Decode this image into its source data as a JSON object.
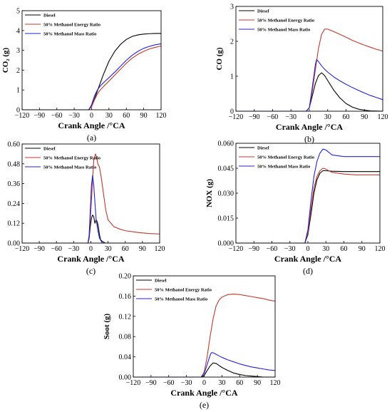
{
  "colors": {
    "diesel": "#000000",
    "energy": "#c0392b",
    "mass": "#2323d6"
  },
  "chart_data": [
    {
      "type": "line",
      "panel_label": "(a)",
      "xlabel": "Crank Angle /°CA",
      "ylabel": "CO₂ (g)",
      "xlim": [
        -120,
        120
      ],
      "ylim": [
        0,
        5
      ],
      "xticks": [
        -120,
        -90,
        -60,
        -30,
        0,
        30,
        60,
        90,
        120
      ],
      "yticks": [
        0,
        1,
        2,
        3,
        4,
        5
      ],
      "yticklabels": [
        "0",
        "1",
        "2",
        "3",
        "4",
        "5"
      ],
      "legend": "top-left",
      "series": [
        {
          "name": "Diesel",
          "color": "#000000",
          "x": [
            -120,
            -5,
            0,
            5,
            10,
            15,
            20,
            25,
            30,
            40,
            50,
            60,
            70,
            80,
            90,
            100,
            110,
            120
          ],
          "y": [
            0,
            0,
            0.22,
            0.55,
            0.95,
            1.35,
            1.75,
            2.1,
            2.45,
            2.95,
            3.3,
            3.55,
            3.7,
            3.78,
            3.82,
            3.84,
            3.85,
            3.85
          ]
        },
        {
          "name": "50% Methanol Energy Ratio",
          "color": "#c0392b",
          "x": [
            -120,
            -5,
            0,
            5,
            10,
            15,
            20,
            30,
            40,
            50,
            60,
            70,
            80,
            90,
            100,
            110,
            120
          ],
          "y": [
            0,
            0,
            0.15,
            0.5,
            0.8,
            1.0,
            1.15,
            1.45,
            1.75,
            2.05,
            2.35,
            2.6,
            2.8,
            2.95,
            3.07,
            3.15,
            3.22
          ]
        },
        {
          "name": "50% Methanol Mass Ratio",
          "color": "#2323d6",
          "x": [
            -120,
            -5,
            0,
            5,
            10,
            15,
            20,
            30,
            40,
            50,
            60,
            70,
            80,
            90,
            100,
            110,
            120
          ],
          "y": [
            0,
            0,
            0.25,
            0.7,
            1.0,
            1.2,
            1.35,
            1.62,
            1.9,
            2.2,
            2.5,
            2.75,
            2.95,
            3.1,
            3.2,
            3.28,
            3.33
          ]
        }
      ]
    },
    {
      "type": "line",
      "panel_label": "(b)",
      "xlabel": "Crank Angle /°CA",
      "ylabel": "CO  (g)",
      "xlim": [
        -120,
        120
      ],
      "ylim": [
        0,
        3
      ],
      "xticks": [
        -120,
        -90,
        -60,
        -30,
        0,
        30,
        60,
        90,
        120
      ],
      "yticks": [
        0,
        1,
        2,
        3
      ],
      "yticklabels": [
        "0",
        "1",
        "2",
        "3"
      ],
      "legend": "top-left",
      "series": [
        {
          "name": "Diesel",
          "color": "#000000",
          "x": [
            -120,
            -5,
            0,
            5,
            10,
            15,
            20,
            25,
            30,
            40,
            50,
            60,
            70,
            80,
            90,
            100,
            120
          ],
          "y": [
            0,
            0,
            0.1,
            0.45,
            0.8,
            1.02,
            1.1,
            1.02,
            0.88,
            0.6,
            0.38,
            0.22,
            0.12,
            0.06,
            0.03,
            0.01,
            0
          ]
        },
        {
          "name": "50% Methanol Energy Ratio",
          "color": "#c0392b",
          "x": [
            -120,
            -5,
            0,
            5,
            10,
            15,
            20,
            25,
            30,
            40,
            50,
            60,
            70,
            80,
            90,
            100,
            110,
            120
          ],
          "y": [
            0,
            0,
            0.1,
            0.6,
            1.2,
            1.8,
            2.2,
            2.35,
            2.35,
            2.28,
            2.2,
            2.12,
            2.03,
            1.96,
            1.89,
            1.83,
            1.77,
            1.72
          ]
        },
        {
          "name": "50% Methanol Mass Ratio",
          "color": "#2323d6",
          "x": [
            -120,
            -5,
            0,
            5,
            10,
            12,
            15,
            20,
            25,
            30,
            40,
            50,
            60,
            70,
            80,
            90,
            100,
            110,
            120
          ],
          "y": [
            0,
            0,
            0.1,
            0.7,
            1.35,
            1.48,
            1.42,
            1.3,
            1.2,
            1.12,
            0.98,
            0.87,
            0.77,
            0.68,
            0.6,
            0.52,
            0.45,
            0.39,
            0.33
          ]
        }
      ]
    },
    {
      "type": "line",
      "panel_label": "(c)",
      "xlabel": "Crank Angle /°CA",
      "ylabel": "HC (g)",
      "xlim": [
        -120,
        120
      ],
      "ylim": [
        0,
        0.6
      ],
      "xticks": [
        -120,
        -90,
        -60,
        -30,
        0,
        30,
        60,
        90,
        120
      ],
      "yticks": [
        0,
        0.12,
        0.24,
        0.36,
        0.48,
        0.6
      ],
      "yticklabels": [
        "0.00",
        "0.12",
        "0.24",
        "0.36",
        "0.48",
        "0.60"
      ],
      "legend": "top-left",
      "series": [
        {
          "name": "Diesel",
          "color": "#000000",
          "x": [
            -120,
            -5,
            -3,
            -1,
            1,
            3,
            5,
            7,
            9,
            11,
            13,
            15,
            17,
            20,
            25,
            120
          ],
          "y": [
            0,
            0,
            0.03,
            0.1,
            0.15,
            0.17,
            0.16,
            0.12,
            0.14,
            0.13,
            0.1,
            0.05,
            0.02,
            0.01,
            0,
            0
          ]
        },
        {
          "name": "50% Methanol Energy Ratio",
          "color": "#c0392b",
          "x": [
            -120,
            -5,
            -3,
            0,
            3,
            5,
            8,
            10,
            12,
            15,
            18,
            22,
            26,
            30,
            40,
            50,
            60,
            80,
            100,
            120
          ],
          "y": [
            0,
            0,
            0.04,
            0.2,
            0.38,
            0.5,
            0.54,
            0.52,
            0.48,
            0.46,
            0.4,
            0.3,
            0.2,
            0.14,
            0.1,
            0.085,
            0.075,
            0.065,
            0.058,
            0.055
          ]
        },
        {
          "name": "50% Methanol Mass Ratio",
          "color": "#2323d6",
          "x": [
            -120,
            -5,
            -3,
            -1,
            1,
            3,
            5,
            7,
            9,
            12,
            15,
            20,
            120
          ],
          "y": [
            0,
            0,
            0.05,
            0.2,
            0.35,
            0.41,
            0.35,
            0.25,
            0.15,
            0.08,
            0.03,
            0,
            0
          ]
        }
      ]
    },
    {
      "type": "line",
      "panel_label": "(d)",
      "xlabel": "Crank Angle /°CA",
      "ylabel": "NOX (g)",
      "xlim": [
        -120,
        120
      ],
      "ylim": [
        0,
        0.06
      ],
      "xticks": [
        -120,
        -90,
        -60,
        -30,
        0,
        30,
        60,
        90,
        120
      ],
      "yticks": [
        0,
        0.015,
        0.03,
        0.045,
        0.06
      ],
      "yticklabels": [
        "0.000",
        "0.015",
        "0.030",
        "0.045",
        "0.060"
      ],
      "legend": "top-left",
      "series": [
        {
          "name": "Diesel",
          "color": "#000000",
          "x": [
            -120,
            -5,
            0,
            5,
            10,
            15,
            20,
            25,
            30,
            40,
            60,
            80,
            100,
            120
          ],
          "y": [
            0,
            0,
            0.005,
            0.017,
            0.03,
            0.038,
            0.042,
            0.0435,
            0.0435,
            0.0432,
            0.043,
            0.043,
            0.043,
            0.043
          ]
        },
        {
          "name": "50% Methanol Energy Ratio",
          "color": "#c0392b",
          "x": [
            -120,
            -5,
            0,
            5,
            10,
            15,
            20,
            25,
            30,
            40,
            60,
            80,
            100,
            120
          ],
          "y": [
            0,
            0,
            0.006,
            0.02,
            0.033,
            0.04,
            0.0435,
            0.045,
            0.0445,
            0.0425,
            0.0415,
            0.041,
            0.041,
            0.041
          ]
        },
        {
          "name": "50% Methanol Mass Ratio",
          "color": "#2323d6",
          "x": [
            -120,
            -5,
            0,
            5,
            10,
            15,
            20,
            25,
            30,
            40,
            60,
            80,
            100,
            120
          ],
          "y": [
            0,
            0,
            0.008,
            0.025,
            0.04,
            0.049,
            0.054,
            0.0565,
            0.056,
            0.053,
            0.052,
            0.052,
            0.052,
            0.052
          ]
        }
      ]
    },
    {
      "type": "line",
      "panel_label": "(e)",
      "xlabel": "Crank Angle /°CA",
      "ylabel": "Soot  (g)",
      "xlim": [
        -120,
        120
      ],
      "ylim": [
        0,
        0.2
      ],
      "xticks": [
        -120,
        -90,
        -60,
        -30,
        0,
        30,
        60,
        90,
        120
      ],
      "yticks": [
        0,
        0.04,
        0.08,
        0.12,
        0.16,
        0.2
      ],
      "yticklabels": [
        "0.00",
        "0.04",
        "0.08",
        "0.12",
        "0.16",
        "0.20"
      ],
      "legend": "top-left",
      "series": [
        {
          "name": "Diesel",
          "color": "#000000",
          "x": [
            -120,
            -5,
            0,
            5,
            10,
            15,
            20,
            25,
            30,
            40,
            50,
            60,
            70,
            80,
            90,
            100,
            120
          ],
          "y": [
            0,
            0,
            0.003,
            0.013,
            0.022,
            0.028,
            0.027,
            0.023,
            0.019,
            0.013,
            0.008,
            0.005,
            0.003,
            0.002,
            0.001,
            0,
            0
          ]
        },
        {
          "name": "50% Methanol Energy Ratio",
          "color": "#c0392b",
          "x": [
            -120,
            -5,
            0,
            5,
            10,
            15,
            20,
            25,
            30,
            40,
            50,
            60,
            70,
            80,
            90,
            100,
            110,
            120
          ],
          "y": [
            0,
            0,
            0.01,
            0.04,
            0.08,
            0.115,
            0.14,
            0.152,
            0.158,
            0.163,
            0.164,
            0.163,
            0.161,
            0.159,
            0.157,
            0.155,
            0.152,
            0.15
          ]
        },
        {
          "name": "50% Methanol Mass Ratio",
          "color": "#2323d6",
          "x": [
            -120,
            -5,
            0,
            5,
            10,
            12,
            15,
            20,
            25,
            30,
            40,
            50,
            60,
            70,
            80,
            90,
            100,
            110,
            120
          ],
          "y": [
            0,
            0,
            0.007,
            0.025,
            0.043,
            0.048,
            0.048,
            0.045,
            0.042,
            0.039,
            0.034,
            0.03,
            0.026,
            0.023,
            0.02,
            0.018,
            0.016,
            0.014,
            0.013
          ]
        }
      ]
    }
  ]
}
